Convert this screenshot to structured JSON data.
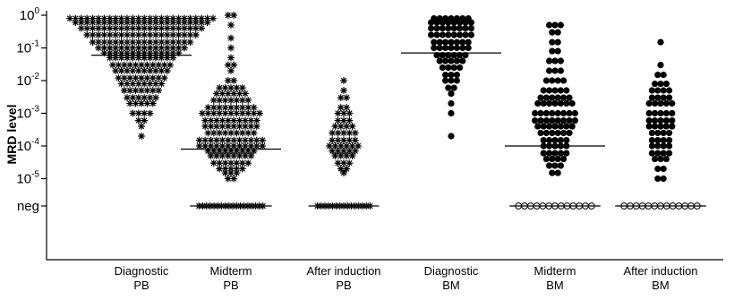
{
  "chart_data": {
    "type": "scatter",
    "title": "",
    "ylabel": "MRD level",
    "xlabel": "",
    "y_scale": "log",
    "y_ticks": [
      {
        "base": "10",
        "exp": "0",
        "value": 1
      },
      {
        "base": "10",
        "exp": "-1",
        "value": 0.1
      },
      {
        "base": "10",
        "exp": "-2",
        "value": 0.01
      },
      {
        "base": "10",
        "exp": "-3",
        "value": 0.001
      },
      {
        "base": "10",
        "exp": "-4",
        "value": 0.0001
      },
      {
        "base": "10",
        "exp": "-5",
        "value": 1e-05
      },
      {
        "base": "",
        "exp": "",
        "label": "neg",
        "value": "neg"
      }
    ],
    "ylim": [
      "neg",
      1
    ],
    "grid": false,
    "categories": [
      [
        "Diagnostic",
        "PB"
      ],
      [
        "Midterm",
        "PB"
      ],
      [
        "After induction",
        "PB"
      ],
      [
        "Diagnostic",
        "BM"
      ],
      [
        "Midterm",
        "BM"
      ],
      [
        "After induction",
        "BM"
      ]
    ],
    "series": [
      {
        "marker": "asterisk",
        "median": 0.06,
        "neg_count": 0,
        "levels": [
          {
            "value": 0.8,
            "count": 26
          },
          {
            "value": 0.6,
            "count": 24
          },
          {
            "value": 0.4,
            "count": 22
          },
          {
            "value": 0.25,
            "count": 20
          },
          {
            "value": 0.15,
            "count": 18
          },
          {
            "value": 0.1,
            "count": 16
          },
          {
            "value": 0.07,
            "count": 14
          },
          {
            "value": 0.05,
            "count": 12
          },
          {
            "value": 0.03,
            "count": 11
          },
          {
            "value": 0.02,
            "count": 10
          },
          {
            "value": 0.012,
            "count": 9
          },
          {
            "value": 0.008,
            "count": 8
          },
          {
            "value": 0.005,
            "count": 7
          },
          {
            "value": 0.003,
            "count": 6
          },
          {
            "value": 0.002,
            "count": 5
          },
          {
            "value": 0.001,
            "count": 4
          },
          {
            "value": 0.0006,
            "count": 2
          },
          {
            "value": 0.0004,
            "count": 1
          },
          {
            "value": 0.0002,
            "count": 1
          }
        ]
      },
      {
        "marker": "asterisk",
        "median": 8e-05,
        "neg_count": 18,
        "levels": [
          {
            "value": 1,
            "count": 2
          },
          {
            "value": 0.5,
            "count": 1
          },
          {
            "value": 0.2,
            "count": 1
          },
          {
            "value": 0.1,
            "count": 1
          },
          {
            "value": 0.05,
            "count": 1
          },
          {
            "value": 0.03,
            "count": 2
          },
          {
            "value": 0.02,
            "count": 1
          },
          {
            "value": 0.01,
            "count": 2
          },
          {
            "value": 0.006,
            "count": 5
          },
          {
            "value": 0.004,
            "count": 6
          },
          {
            "value": 0.0025,
            "count": 7
          },
          {
            "value": 0.0015,
            "count": 9
          },
          {
            "value": 0.001,
            "count": 11
          },
          {
            "value": 0.0006,
            "count": 10
          },
          {
            "value": 0.0004,
            "count": 10
          },
          {
            "value": 0.00025,
            "count": 9
          },
          {
            "value": 0.00015,
            "count": 12
          },
          {
            "value": 0.0001,
            "count": 12
          },
          {
            "value": 7e-05,
            "count": 9
          },
          {
            "value": 5e-05,
            "count": 8
          },
          {
            "value": 3e-05,
            "count": 7
          },
          {
            "value": 2e-05,
            "count": 5
          },
          {
            "value": 1.5e-05,
            "count": 3
          },
          {
            "value": 1e-05,
            "count": 2
          }
        ]
      },
      {
        "marker": "asterisk",
        "median": null,
        "neg_count": 15,
        "levels": [
          {
            "value": 0.01,
            "count": 1
          },
          {
            "value": 0.005,
            "count": 1
          },
          {
            "value": 0.003,
            "count": 2
          },
          {
            "value": 0.0015,
            "count": 2
          },
          {
            "value": 0.001,
            "count": 3
          },
          {
            "value": 0.0006,
            "count": 3
          },
          {
            "value": 0.0004,
            "count": 4
          },
          {
            "value": 0.00025,
            "count": 5
          },
          {
            "value": 0.00015,
            "count": 5
          },
          {
            "value": 0.0001,
            "count": 6
          },
          {
            "value": 7e-05,
            "count": 5
          },
          {
            "value": 5e-05,
            "count": 4
          },
          {
            "value": 3e-05,
            "count": 3
          },
          {
            "value": 2e-05,
            "count": 2
          },
          {
            "value": 1.5e-05,
            "count": 1
          }
        ]
      },
      {
        "marker": "dot",
        "median": 0.07,
        "neg_count": 0,
        "levels": [
          {
            "value": 0.8,
            "count": 7
          },
          {
            "value": 0.6,
            "count": 8
          },
          {
            "value": 0.4,
            "count": 8
          },
          {
            "value": 0.25,
            "count": 8
          },
          {
            "value": 0.15,
            "count": 7
          },
          {
            "value": 0.1,
            "count": 7
          },
          {
            "value": 0.06,
            "count": 6
          },
          {
            "value": 0.04,
            "count": 5
          },
          {
            "value": 0.025,
            "count": 4
          },
          {
            "value": 0.015,
            "count": 3
          },
          {
            "value": 0.01,
            "count": 3
          },
          {
            "value": 0.006,
            "count": 2
          },
          {
            "value": 0.004,
            "count": 1
          },
          {
            "value": 0.002,
            "count": 1
          },
          {
            "value": 0.001,
            "count": 1
          },
          {
            "value": 0.0002,
            "count": 1
          }
        ]
      },
      {
        "marker": "dot",
        "median": 0.0001,
        "neg_count": 13,
        "levels": [
          {
            "value": 0.5,
            "count": 3
          },
          {
            "value": 0.3,
            "count": 2
          },
          {
            "value": 0.15,
            "count": 2
          },
          {
            "value": 0.08,
            "count": 2
          },
          {
            "value": 0.04,
            "count": 3
          },
          {
            "value": 0.02,
            "count": 3
          },
          {
            "value": 0.01,
            "count": 4
          },
          {
            "value": 0.005,
            "count": 5
          },
          {
            "value": 0.003,
            "count": 6
          },
          {
            "value": 0.002,
            "count": 7
          },
          {
            "value": 0.001,
            "count": 8
          },
          {
            "value": 0.0006,
            "count": 8
          },
          {
            "value": 0.0004,
            "count": 7
          },
          {
            "value": 0.00025,
            "count": 6
          },
          {
            "value": 0.00015,
            "count": 5
          },
          {
            "value": 0.0001,
            "count": 5
          },
          {
            "value": 6e-05,
            "count": 5
          },
          {
            "value": 4e-05,
            "count": 4
          },
          {
            "value": 2.5e-05,
            "count": 3
          },
          {
            "value": 1.5e-05,
            "count": 2
          }
        ]
      },
      {
        "marker": "dot",
        "median": null,
        "neg_count": 13,
        "levels": [
          {
            "value": 0.15,
            "count": 1
          },
          {
            "value": 0.03,
            "count": 1
          },
          {
            "value": 0.015,
            "count": 2
          },
          {
            "value": 0.008,
            "count": 3
          },
          {
            "value": 0.005,
            "count": 4
          },
          {
            "value": 0.003,
            "count": 4
          },
          {
            "value": 0.002,
            "count": 5
          },
          {
            "value": 0.001,
            "count": 5
          },
          {
            "value": 0.0006,
            "count": 5
          },
          {
            "value": 0.0004,
            "count": 5
          },
          {
            "value": 0.00025,
            "count": 4
          },
          {
            "value": 0.00015,
            "count": 4
          },
          {
            "value": 0.0001,
            "count": 4
          },
          {
            "value": 6e-05,
            "count": 4
          },
          {
            "value": 4e-05,
            "count": 3
          },
          {
            "value": 2e-05,
            "count": 2
          },
          {
            "value": 1e-05,
            "count": 2
          }
        ]
      }
    ]
  }
}
